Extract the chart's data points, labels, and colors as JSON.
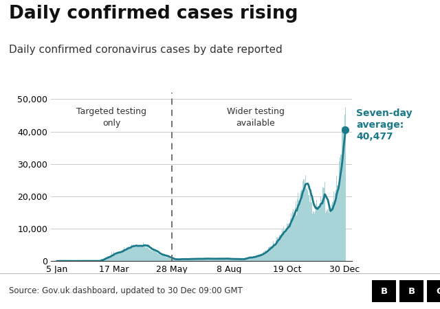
{
  "title": "Daily confirmed cases rising",
  "subtitle": "Daily confirmed coronavirus cases by date reported",
  "source": "Source: Gov.uk dashboard, updated to 30 Dec 09:00 GMT",
  "bar_color": "#a8d4d8",
  "line_color": "#1a7a8a",
  "dashed_line_color": "#555555",
  "annotation_color": "#1a7a8a",
  "background_color": "#ffffff",
  "footer_background": "#f0f0f0",
  "ylim": [
    0,
    52000
  ],
  "yticks": [
    0,
    10000,
    20000,
    30000,
    40000,
    50000
  ],
  "xtick_labels": [
    "5 Jan",
    "17 Mar",
    "28 May",
    "8 Aug",
    "19 Oct",
    "30 Dec"
  ],
  "label_targeted": "Targeted testing\nonly",
  "label_wider": "Wider testing\navailable",
  "annotation_text": "Seven-day\naverage:\n40,477",
  "seven_day_avg_final": 40477,
  "title_fontsize": 19,
  "subtitle_fontsize": 11,
  "tick_fontsize": 9,
  "annotation_fontsize": 10
}
